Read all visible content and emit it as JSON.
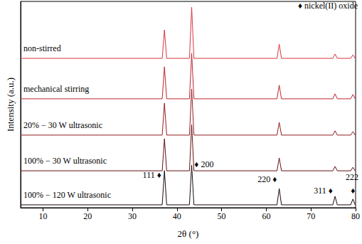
{
  "chart_data": {
    "type": "line",
    "x_label": "2θ (°)",
    "y_label": "Intensity (a.u.)",
    "phase_label": "♦ nickel(II) oxide",
    "x": [
      5,
      36.7,
      37.2,
      37.7,
      42.8,
      43.3,
      43.8,
      62.4,
      62.9,
      63.4,
      74.9,
      75.4,
      75.9,
      78.9,
      79.4,
      79.9,
      80
    ],
    "series": [
      {
        "name": "non-stirred",
        "color": "#d9363e",
        "values": [
          72.4,
          72.4,
          86.2,
          72.4,
          72.4,
          97.2,
          72.4,
          72.4,
          79.3,
          72.4,
          72.4,
          74.5,
          72.4,
          72.4,
          74.1,
          72.4,
          72.4
        ]
      },
      {
        "name": "mechanical stirring",
        "color": "#bd262c",
        "values": [
          52.8,
          52.8,
          68.3,
          52.8,
          52.8,
          74.9,
          52.8,
          52.8,
          59.4,
          52.8,
          52.8,
          55.2,
          52.8,
          52.8,
          54.9,
          52.8,
          52.8
        ]
      },
      {
        "name": "20% − 30 W ultrasonic",
        "color": "#961c21",
        "values": [
          35.2,
          35.2,
          50.7,
          35.2,
          35.2,
          57.6,
          35.2,
          35.2,
          41.4,
          35.2,
          35.2,
          37.3,
          35.2,
          35.2,
          36.9,
          35.2,
          35.2
        ]
      },
      {
        "name": "100% − 30 W ultrasonic",
        "color": "#631114",
        "values": [
          17.9,
          17.9,
          33.4,
          17.9,
          17.9,
          40.3,
          17.9,
          17.9,
          24.1,
          17.9,
          17.9,
          20.0,
          17.9,
          17.9,
          19.6,
          17.9,
          17.9
        ]
      },
      {
        "name": "100% − 120 W ultrasonic",
        "color": "#1a0909",
        "values": [
          1.4,
          1.4,
          18.0,
          1.4,
          1.4,
          20.7,
          1.4,
          1.4,
          9.3,
          1.4,
          1.4,
          5.5,
          1.4,
          1.4,
          4.2,
          1.4,
          1.4
        ]
      }
    ],
    "annotations": [
      {
        "text": "111 ♦",
        "x": 36.5,
        "y": 15.9
      },
      {
        "text": "♦ 200",
        "x": 43.9,
        "y": 21
      },
      {
        "text": "220 ♦",
        "x": 62.4,
        "y": 13.8
      },
      {
        "text": "311 ♦",
        "x": 74.9,
        "y": 8.3
      },
      {
        "text": "222",
        "x": 79.2,
        "y": 14.8
      },
      {
        "text": "♦",
        "x": 79.4,
        "y": 8.3
      }
    ],
    "xlim": [
      5,
      80
    ],
    "xticks": [
      10,
      20,
      30,
      40,
      50,
      60,
      70,
      80
    ],
    "ylim": [
      0,
      100
    ],
    "tick_labels": "x",
    "grid": false
  }
}
